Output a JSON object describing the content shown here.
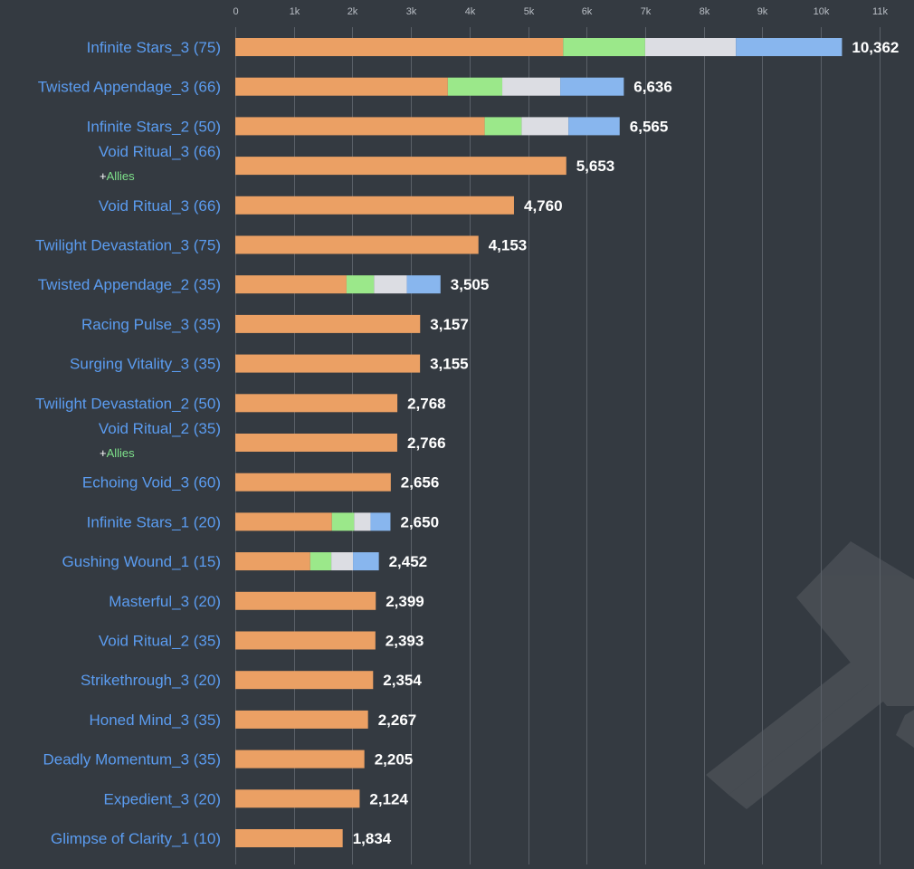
{
  "chart_data": {
    "type": "bar",
    "orientation": "horizontal",
    "stacked": true,
    "xlim": [
      0,
      11000
    ],
    "x_ticks": [
      {
        "value": 0,
        "label": "0"
      },
      {
        "value": 1000,
        "label": "1k"
      },
      {
        "value": 2000,
        "label": "2k"
      },
      {
        "value": 3000,
        "label": "3k"
      },
      {
        "value": 4000,
        "label": "4k"
      },
      {
        "value": 5000,
        "label": "5k"
      },
      {
        "value": 6000,
        "label": "6k"
      },
      {
        "value": 7000,
        "label": "7k"
      },
      {
        "value": 8000,
        "label": "8k"
      },
      {
        "value": 9000,
        "label": "9k"
      },
      {
        "value": 10000,
        "label": "10k"
      },
      {
        "value": 11000,
        "label": "11k"
      }
    ],
    "grid": true,
    "segment_colors": [
      "#eba064",
      "#9be88a",
      "#dcdde3",
      "#88b6ee"
    ],
    "colors": {
      "background": "#343a41",
      "category_label": "#5b9cf0",
      "allies_label": "#7ee08a",
      "value_label": "#ffffff"
    },
    "note_text": "Allies",
    "bars": [
      {
        "label": "Infinite Stars_3 (75)",
        "total": 10362,
        "total_label": "10,362",
        "segments": [
          5600,
          1400,
          1550,
          1812
        ]
      },
      {
        "label": "Twisted Appendage_3 (66)",
        "total": 6636,
        "total_label": "6,636",
        "segments": [
          3630,
          930,
          990,
          1086
        ]
      },
      {
        "label": "Infinite Stars_2 (50)",
        "total": 6565,
        "total_label": "6,565",
        "segments": [
          4260,
          630,
          800,
          875
        ]
      },
      {
        "label": "Void Ritual_3 (66)",
        "total": 5653,
        "total_label": "5,653",
        "segments": [
          5653
        ],
        "note": true
      },
      {
        "label": "Void Ritual_3 (66)",
        "total": 4760,
        "total_label": "4,760",
        "segments": [
          4760
        ]
      },
      {
        "label": "Twilight Devastation_3 (75)",
        "total": 4153,
        "total_label": "4,153",
        "segments": [
          4153
        ]
      },
      {
        "label": "Twisted Appendage_2 (35)",
        "total": 3505,
        "total_label": "3,505",
        "segments": [
          1900,
          470,
          560,
          575
        ]
      },
      {
        "label": "Racing Pulse_3 (35)",
        "total": 3157,
        "total_label": "3,157",
        "segments": [
          3157
        ]
      },
      {
        "label": "Surging Vitality_3 (35)",
        "total": 3155,
        "total_label": "3,155",
        "segments": [
          3155
        ]
      },
      {
        "label": "Twilight Devastation_2 (50)",
        "total": 2768,
        "total_label": "2,768",
        "segments": [
          2768
        ]
      },
      {
        "label": "Void Ritual_2 (35)",
        "total": 2766,
        "total_label": "2,766",
        "segments": [
          2766
        ],
        "note": true
      },
      {
        "label": "Echoing Void_3 (60)",
        "total": 2656,
        "total_label": "2,656",
        "segments": [
          2656
        ]
      },
      {
        "label": "Infinite Stars_1 (20)",
        "total": 2650,
        "total_label": "2,650",
        "segments": [
          1650,
          380,
          280,
          340
        ]
      },
      {
        "label": "Gushing Wound_1 (15)",
        "total": 2452,
        "total_label": "2,452",
        "segments": [
          1280,
          360,
          370,
          442
        ]
      },
      {
        "label": "Masterful_3 (20)",
        "total": 2399,
        "total_label": "2,399",
        "segments": [
          2399
        ]
      },
      {
        "label": "Void Ritual_2 (35)",
        "total": 2393,
        "total_label": "2,393",
        "segments": [
          2393
        ]
      },
      {
        "label": "Strikethrough_3 (20)",
        "total": 2354,
        "total_label": "2,354",
        "segments": [
          2354
        ]
      },
      {
        "label": "Honed Mind_3 (35)",
        "total": 2267,
        "total_label": "2,267",
        "segments": [
          2267
        ]
      },
      {
        "label": "Deadly Momentum_3 (35)",
        "total": 2205,
        "total_label": "2,205",
        "segments": [
          2205
        ]
      },
      {
        "label": "Expedient_3 (20)",
        "total": 2124,
        "total_label": "2,124",
        "segments": [
          2124
        ]
      },
      {
        "label": "Glimpse of Clarity_1 (10)",
        "total": 1834,
        "total_label": "1,834",
        "segments": [
          1834
        ]
      }
    ]
  }
}
